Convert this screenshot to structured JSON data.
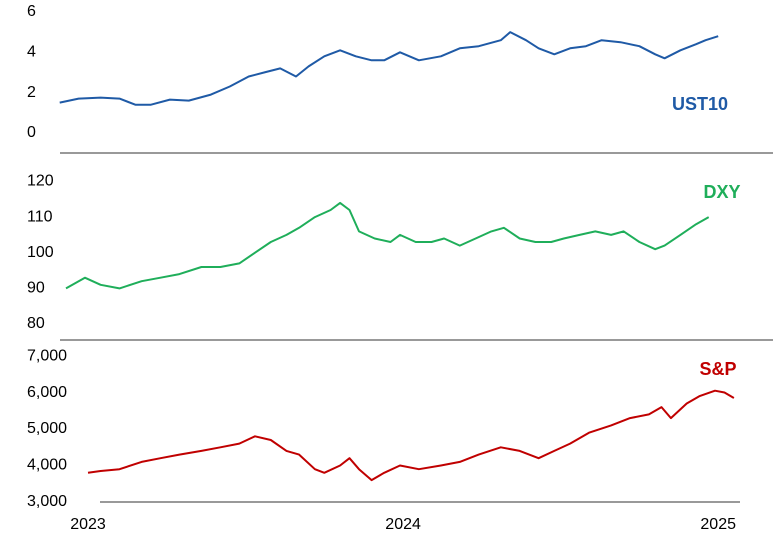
{
  "chart_data": [
    {
      "type": "line",
      "x": [
        2022.91,
        2022.97,
        2023.04,
        2023.1,
        2023.15,
        2023.2,
        2023.26,
        2023.32,
        2023.39,
        2023.45,
        2023.51,
        2023.56,
        2023.61,
        2023.66,
        2023.7,
        2023.75,
        2023.8,
        2023.85,
        2023.9,
        2023.94,
        2023.99,
        2024.05,
        2024.12,
        2024.18,
        2024.24,
        2024.31,
        2024.34,
        2024.39,
        2024.43,
        2024.48,
        2024.53,
        2024.58,
        2024.63,
        2024.69,
        2024.75,
        2024.8,
        2024.83,
        2024.88,
        2024.93,
        2024.96,
        2025.0
      ],
      "series": [
        {
          "name": "UST10",
          "color": "#1f5aa6",
          "values": [
            1.5,
            1.7,
            1.75,
            1.7,
            1.4,
            1.4,
            1.65,
            1.6,
            1.9,
            2.3,
            2.8,
            3.0,
            3.2,
            2.8,
            3.3,
            3.8,
            4.1,
            3.8,
            3.6,
            3.6,
            4.0,
            3.6,
            3.8,
            4.2,
            4.3,
            4.6,
            5.0,
            4.6,
            4.2,
            3.9,
            4.2,
            4.3,
            4.6,
            4.5,
            4.3,
            3.9,
            3.7,
            4.1,
            4.4,
            4.6,
            4.8
          ]
        }
      ],
      "xlim": [
        2022.8,
        2025.12
      ],
      "ylim": [
        -1,
        6
      ],
      "yticks": [
        0,
        2,
        4,
        6
      ]
    },
    {
      "type": "line",
      "x": [
        2022.93,
        2022.99,
        2023.04,
        2023.1,
        2023.17,
        2023.23,
        2023.29,
        2023.36,
        2023.42,
        2023.48,
        2023.53,
        2023.58,
        2023.63,
        2023.67,
        2023.72,
        2023.77,
        2023.8,
        2023.83,
        2023.86,
        2023.91,
        2023.96,
        2023.99,
        2024.04,
        2024.09,
        2024.13,
        2024.18,
        2024.23,
        2024.28,
        2024.32,
        2024.37,
        2024.42,
        2024.47,
        2024.51,
        2024.56,
        2024.61,
        2024.66,
        2024.7,
        2024.75,
        2024.8,
        2024.83,
        2024.88,
        2024.93,
        2024.97
      ],
      "series": [
        {
          "name": "DXY",
          "color": "#1fae5a",
          "values": [
            90,
            93,
            91,
            90,
            92,
            93,
            94,
            96,
            96,
            97,
            100,
            103,
            105,
            107,
            110,
            112,
            114,
            112,
            106,
            104,
            103,
            105,
            103,
            103,
            104,
            102,
            104,
            106,
            107,
            104,
            103,
            103,
            104,
            105,
            106,
            105,
            106,
            103,
            101,
            102,
            105,
            108,
            110
          ]
        }
      ],
      "xlim": [
        2022.8,
        2025.12
      ],
      "ylim": [
        75.5,
        128
      ],
      "yticks": [
        80,
        90,
        100,
        110,
        120
      ]
    },
    {
      "type": "line",
      "x": [
        2023.0,
        2023.04,
        2023.1,
        2023.17,
        2023.23,
        2023.29,
        2023.36,
        2023.42,
        2023.48,
        2023.53,
        2023.58,
        2023.63,
        2023.67,
        2023.72,
        2023.75,
        2023.8,
        2023.83,
        2023.86,
        2023.9,
        2023.94,
        2023.99,
        2024.05,
        2024.12,
        2024.18,
        2024.24,
        2024.31,
        2024.37,
        2024.43,
        2024.48,
        2024.53,
        2024.59,
        2024.66,
        2024.72,
        2024.78,
        2024.82,
        2024.85,
        2024.9,
        2024.94,
        2024.99,
        2025.02,
        2025.05
      ],
      "series": [
        {
          "name": "S&P",
          "color": "#c00000",
          "values": [
            3800,
            3850,
            3900,
            4100,
            4200,
            4300,
            4400,
            4500,
            4600,
            4800,
            4700,
            4400,
            4300,
            3900,
            3800,
            4000,
            4200,
            3900,
            3600,
            3800,
            4000,
            3900,
            4000,
            4100,
            4300,
            4500,
            4400,
            4200,
            4400,
            4600,
            4900,
            5100,
            5300,
            5400,
            5600,
            5300,
            5700,
            5900,
            6050,
            6000,
            5850
          ]
        }
      ],
      "xlim": [
        2022.8,
        2025.12
      ],
      "ylim": [
        3000,
        7440
      ],
      "yticks": [
        {
          "value": 3000,
          "label": "3,000"
        },
        {
          "value": 4000,
          "label": "4,000"
        },
        {
          "value": 5000,
          "label": "5,000"
        },
        {
          "value": 6000,
          "label": "6,000"
        },
        {
          "value": 7000,
          "label": "7,000"
        }
      ],
      "xticks": [
        2023,
        2024,
        2025
      ]
    }
  ]
}
